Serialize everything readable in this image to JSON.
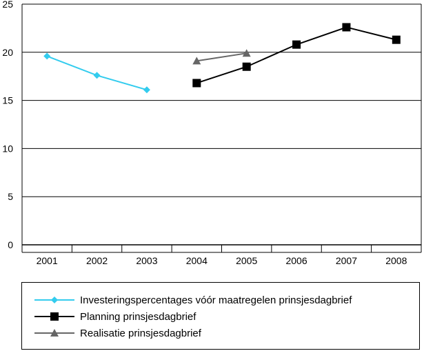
{
  "chart_data": {
    "type": "line",
    "title": "",
    "xlabel": "",
    "ylabel": "",
    "categories": [
      "2001",
      "2002",
      "2003",
      "2004",
      "2005",
      "2006",
      "2007",
      "2008"
    ],
    "ylim": [
      0,
      25
    ],
    "yticks": [
      "0",
      "5",
      "10",
      "15",
      "20",
      "25"
    ],
    "grid": true,
    "legend_position": "bottom",
    "series": [
      {
        "name": "Investeringspercentages vóór maatregelen prinsjesdagbrief",
        "values": [
          19.6,
          17.6,
          16.1,
          null,
          null,
          null,
          null,
          null
        ],
        "color": "#33ccee",
        "marker": "diamond"
      },
      {
        "name": "Planning prinsjesdagbrief",
        "values": [
          null,
          null,
          null,
          16.8,
          18.5,
          20.8,
          22.6,
          21.3
        ],
        "color": "#000000",
        "marker": "square"
      },
      {
        "name": "Realisatie prinsjesdagbrief",
        "values": [
          null,
          null,
          null,
          19.1,
          19.9,
          null,
          null,
          null
        ],
        "color": "#666666",
        "marker": "triangle"
      }
    ]
  }
}
